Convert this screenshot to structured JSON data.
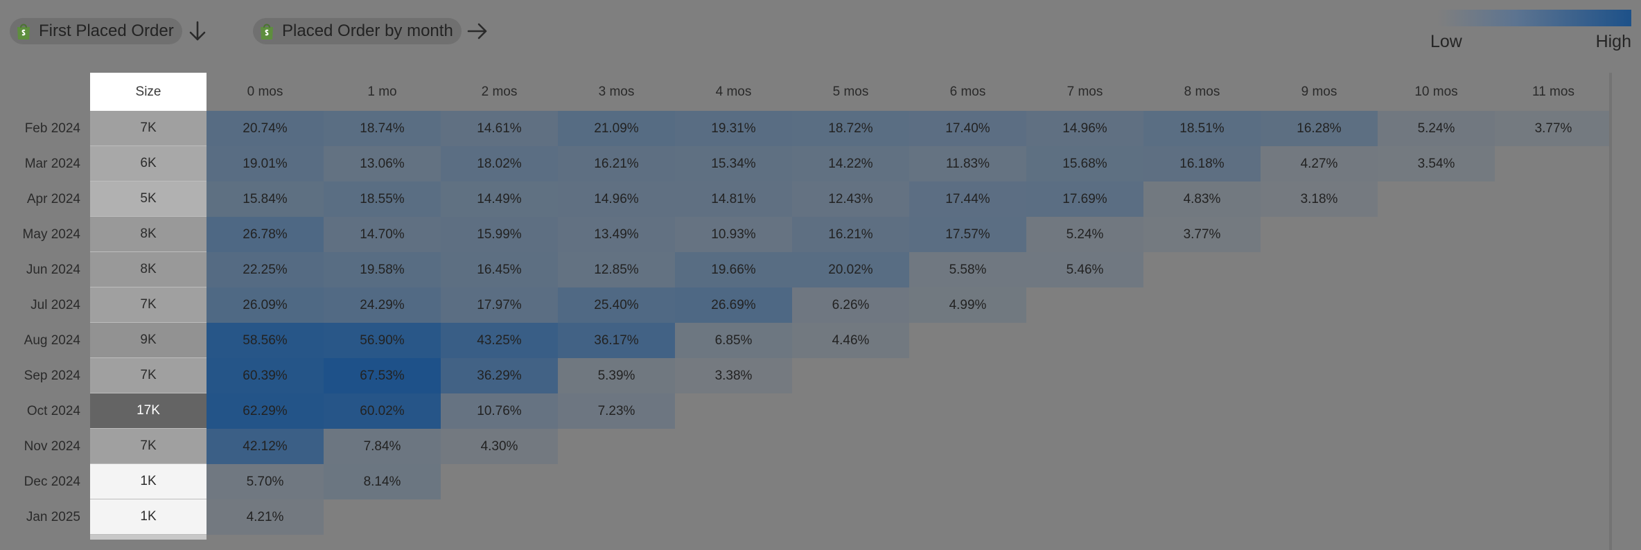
{
  "header": {
    "row_dimension": {
      "label": "First Placed Order",
      "icon": "shopify-bag-icon",
      "arrow_icon": "arrow-down-icon"
    },
    "col_dimension": {
      "label": "Placed Order by month",
      "icon": "shopify-bag-icon",
      "arrow_icon": "arrow-right-icon"
    }
  },
  "legend": {
    "low": "Low",
    "high": "High",
    "low_color": "#7f7f7f",
    "high_color": "#1d5189"
  },
  "size_header": "Size",
  "chart_data": {
    "type": "heatmap",
    "title": "",
    "xlabel": "Placed Order by month",
    "ylabel": "First Placed Order",
    "columns": [
      "0 mos",
      "1 mo",
      "2 mos",
      "3 mos",
      "4 mos",
      "5 mos",
      "6 mos",
      "7 mos",
      "8 mos",
      "9 mos",
      "10 mos",
      "11 mos"
    ],
    "rows": [
      {
        "label": "Feb 2024",
        "size": "7K",
        "values": [
          "20.74%",
          "18.74%",
          "14.61%",
          "21.09%",
          "19.31%",
          "18.72%",
          "17.40%",
          "14.96%",
          "18.51%",
          "16.28%",
          "5.24%",
          "3.77%"
        ]
      },
      {
        "label": "Mar 2024",
        "size": "6K",
        "values": [
          "19.01%",
          "13.06%",
          "18.02%",
          "16.21%",
          "15.34%",
          "14.22%",
          "11.83%",
          "15.68%",
          "16.18%",
          "4.27%",
          "3.54%"
        ]
      },
      {
        "label": "Apr 2024",
        "size": "5K",
        "values": [
          "15.84%",
          "18.55%",
          "14.49%",
          "14.96%",
          "14.81%",
          "12.43%",
          "17.44%",
          "17.69%",
          "4.83%",
          "3.18%"
        ]
      },
      {
        "label": "May 2024",
        "size": "8K",
        "values": [
          "26.78%",
          "14.70%",
          "15.99%",
          "13.49%",
          "10.93%",
          "16.21%",
          "17.57%",
          "5.24%",
          "3.77%"
        ]
      },
      {
        "label": "Jun 2024",
        "size": "8K",
        "values": [
          "22.25%",
          "19.58%",
          "16.45%",
          "12.85%",
          "19.66%",
          "20.02%",
          "5.58%",
          "5.46%"
        ]
      },
      {
        "label": "Jul 2024",
        "size": "7K",
        "values": [
          "26.09%",
          "24.29%",
          "17.97%",
          "25.40%",
          "26.69%",
          "6.26%",
          "4.99%"
        ]
      },
      {
        "label": "Aug 2024",
        "size": "9K",
        "values": [
          "58.56%",
          "56.90%",
          "43.25%",
          "36.17%",
          "6.85%",
          "4.46%"
        ]
      },
      {
        "label": "Sep 2024",
        "size": "7K",
        "values": [
          "60.39%",
          "67.53%",
          "36.29%",
          "5.39%",
          "3.38%"
        ]
      },
      {
        "label": "Oct 2024",
        "size": "17K",
        "values": [
          "62.29%",
          "60.02%",
          "10.76%",
          "7.23%"
        ]
      },
      {
        "label": "Nov 2024",
        "size": "7K",
        "values": [
          "42.12%",
          "7.84%",
          "4.30%"
        ]
      },
      {
        "label": "Dec 2024",
        "size": "1K",
        "values": [
          "5.70%",
          "8.14%"
        ]
      },
      {
        "label": "Jan 2025",
        "size": "1K",
        "values": [
          "4.21%"
        ]
      }
    ],
    "size_counts": [
      7,
      6,
      5,
      8,
      8,
      7,
      9,
      7,
      17,
      7,
      1,
      1
    ],
    "color_scale": {
      "low": "#7f7f7f",
      "high": "#1d5189"
    }
  }
}
